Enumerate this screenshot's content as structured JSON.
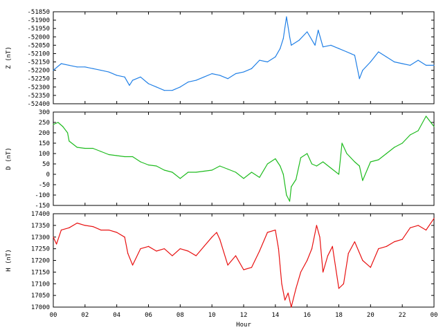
{
  "chart_data": [
    {
      "type": "line",
      "ylabel": "Z (nT)",
      "xlabel": "",
      "xlim": [
        0,
        24
      ],
      "ylim": [
        -52400,
        -51850
      ],
      "yticks": [
        -51850,
        -51900,
        -51950,
        -52000,
        -52050,
        -52100,
        -52150,
        -52200,
        -52250,
        -52300,
        -52350,
        -52400
      ],
      "color": "#1f7fe6",
      "series": [
        {
          "x": [
            0,
            0.5,
            1,
            1.5,
            2,
            2.5,
            3,
            3.5,
            4,
            4.5,
            4.8,
            5,
            5.5,
            6,
            6.5,
            7,
            7.5,
            8,
            8.5,
            9,
            9.5,
            10,
            10.5,
            11,
            11.5,
            12,
            12.5,
            13,
            13.5,
            14,
            14.3,
            14.5,
            14.7,
            14.9,
            15,
            15.5,
            16,
            16.5,
            16.7,
            17,
            17.5,
            18,
            18.5,
            19,
            19.3,
            19.5,
            20,
            20.5,
            21,
            21.5,
            22,
            22.5,
            23,
            23.5,
            24
          ],
          "values": [
            -52200,
            -52160,
            -52170,
            -52180,
            -52180,
            -52190,
            -52200,
            -52210,
            -52230,
            -52240,
            -52290,
            -52260,
            -52240,
            -52280,
            -52300,
            -52320,
            -52320,
            -52300,
            -52270,
            -52260,
            -52240,
            -52220,
            -52230,
            -52250,
            -52220,
            -52210,
            -52190,
            -52140,
            -52150,
            -52120,
            -52070,
            -52010,
            -51880,
            -52000,
            -52050,
            -52020,
            -51970,
            -52050,
            -51960,
            -52060,
            -52050,
            -52070,
            -52090,
            -52110,
            -52250,
            -52200,
            -52150,
            -52090,
            -52120,
            -52150,
            -52160,
            -52170,
            -52140,
            -52170,
            -52170
          ]
        }
      ]
    },
    {
      "type": "line",
      "ylabel": "D (nT)",
      "xlabel": "",
      "xlim": [
        0,
        24
      ],
      "ylim": [
        -150,
        300
      ],
      "yticks": [
        300,
        250,
        200,
        150,
        100,
        50,
        0,
        -50,
        -100,
        -150
      ],
      "color": "#1dbb1d",
      "series": [
        {
          "x": [
            0,
            0.3,
            0.6,
            0.9,
            1,
            1.5,
            2,
            2.5,
            3,
            3.5,
            4,
            4.5,
            5,
            5.5,
            6,
            6.5,
            7,
            7.5,
            8,
            8.5,
            9,
            9.5,
            10,
            10.5,
            11,
            11.5,
            12,
            12.5,
            13,
            13.5,
            14,
            14.3,
            14.5,
            14.7,
            14.9,
            15,
            15.3,
            15.6,
            16,
            16.3,
            16.6,
            17,
            17.5,
            18,
            18.2,
            18.5,
            19,
            19.3,
            19.5,
            20,
            20.5,
            21,
            21.5,
            22,
            22.5,
            23,
            23.5,
            24
          ],
          "values": [
            240,
            250,
            230,
            200,
            160,
            130,
            125,
            125,
            110,
            95,
            90,
            85,
            85,
            60,
            45,
            40,
            20,
            10,
            -20,
            10,
            10,
            15,
            20,
            40,
            25,
            10,
            -20,
            10,
            -15,
            50,
            75,
            40,
            0,
            -100,
            -130,
            -60,
            -25,
            80,
            100,
            50,
            40,
            60,
            30,
            0,
            150,
            100,
            60,
            40,
            -30,
            60,
            70,
            100,
            130,
            150,
            190,
            210,
            280,
            230
          ]
        }
      ]
    },
    {
      "type": "line",
      "ylabel": "H (nT)",
      "xlabel": "Hour",
      "xlim": [
        0,
        24
      ],
      "ylim": [
        17000,
        17400
      ],
      "yticks": [
        17400,
        17350,
        17300,
        17250,
        17200,
        17150,
        17100,
        17050,
        17000
      ],
      "xticks": [
        "00",
        "02",
        "04",
        "06",
        "08",
        "10",
        "12",
        "14",
        "16",
        "18",
        "20",
        "22",
        "00"
      ],
      "color": "#e81010",
      "series": [
        {
          "x": [
            0,
            0.2,
            0.5,
            1,
            1.5,
            2,
            2.5,
            3,
            3.5,
            4,
            4.5,
            4.7,
            5,
            5.5,
            6,
            6.5,
            7,
            7.5,
            8,
            8.5,
            9,
            9.5,
            10,
            10.3,
            10.5,
            11,
            11.5,
            12,
            12.5,
            13,
            13.5,
            14,
            14.2,
            14.4,
            14.6,
            14.8,
            15,
            15.3,
            15.6,
            16,
            16.3,
            16.6,
            16.8,
            17,
            17.3,
            17.6,
            18,
            18.3,
            18.6,
            19,
            19.5,
            20,
            20.5,
            21,
            21.5,
            22,
            22.5,
            23,
            23.5,
            24
          ],
          "values": [
            17300,
            17270,
            17330,
            17340,
            17360,
            17350,
            17345,
            17330,
            17330,
            17320,
            17300,
            17230,
            17180,
            17250,
            17260,
            17240,
            17250,
            17220,
            17250,
            17240,
            17220,
            17260,
            17300,
            17320,
            17290,
            17180,
            17220,
            17160,
            17170,
            17240,
            17320,
            17330,
            17250,
            17100,
            17030,
            17060,
            17000,
            17080,
            17150,
            17200,
            17250,
            17350,
            17300,
            17150,
            17220,
            17260,
            17080,
            17100,
            17230,
            17280,
            17200,
            17170,
            17250,
            17260,
            17280,
            17290,
            17340,
            17350,
            17330,
            17380
          ]
        }
      ]
    }
  ]
}
